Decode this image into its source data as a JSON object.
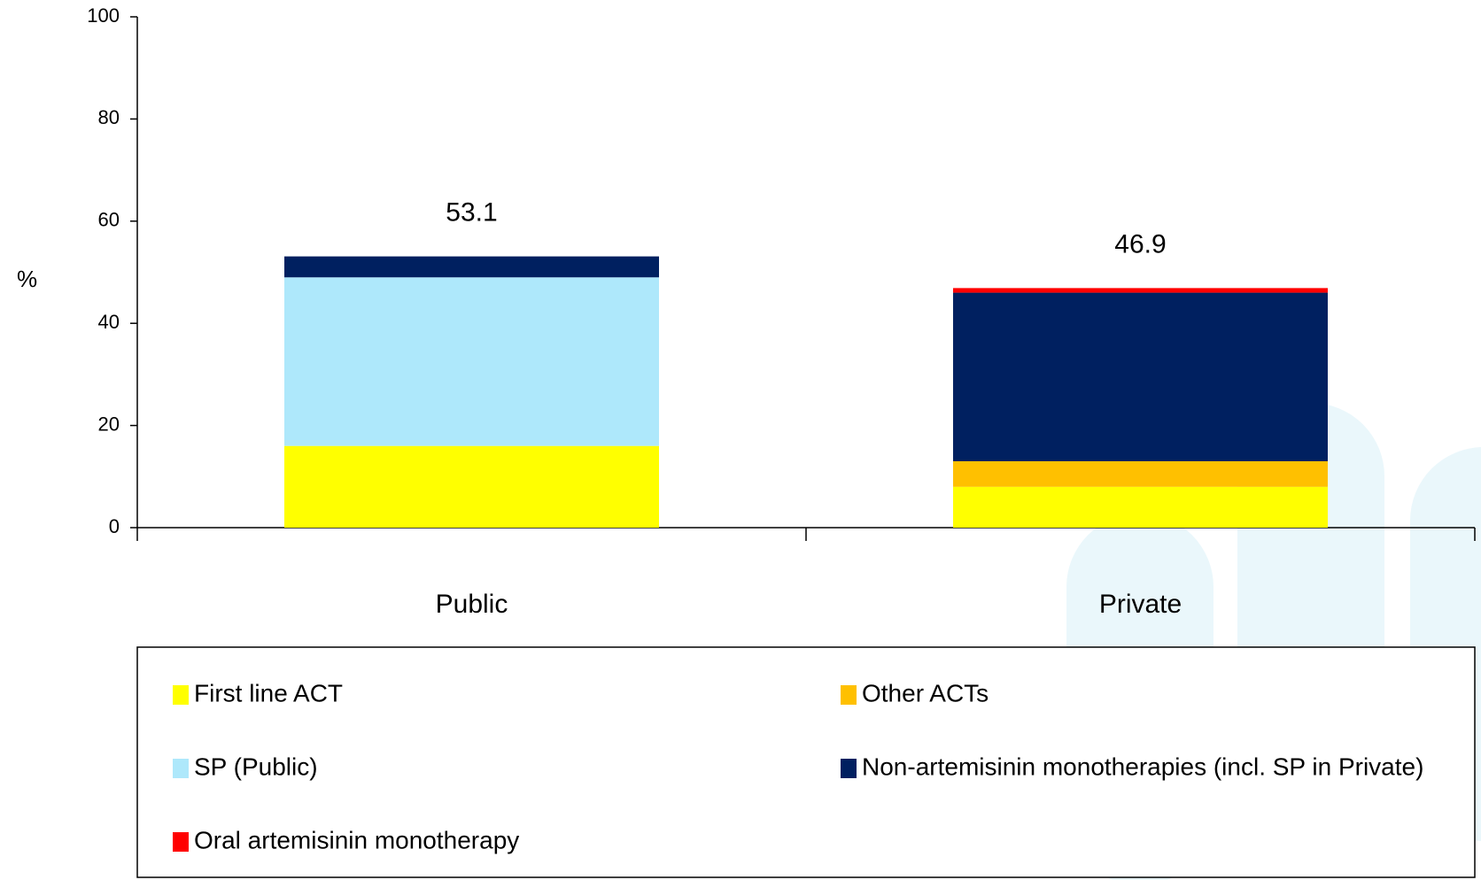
{
  "chart_data": {
    "type": "stacked_bar",
    "y_label": "%",
    "categories": [
      "Public",
      "Private"
    ],
    "series": [
      {
        "name": "First line ACT",
        "color": "#ffff00",
        "values": [
          16,
          8
        ]
      },
      {
        "name": "Other ACTs",
        "color": "#ffc000",
        "values": [
          0,
          5
        ]
      },
      {
        "name": "SP (Public)",
        "color": "#aee8fb",
        "values": [
          33,
          0
        ]
      },
      {
        "name": "Non-artemisinin monotherapies (incl. SP in Private)",
        "color": "#002060",
        "values": [
          4.1,
          33
        ]
      },
      {
        "name": "Oral artemisinin monotherapy",
        "color": "#ff0000",
        "values": [
          0,
          0.9
        ]
      }
    ],
    "totals": [
      53.1,
      46.9
    ],
    "ylim": [
      0,
      100
    ],
    "yticks": [
      0,
      20,
      40,
      60,
      80,
      100
    ],
    "grid": false
  }
}
